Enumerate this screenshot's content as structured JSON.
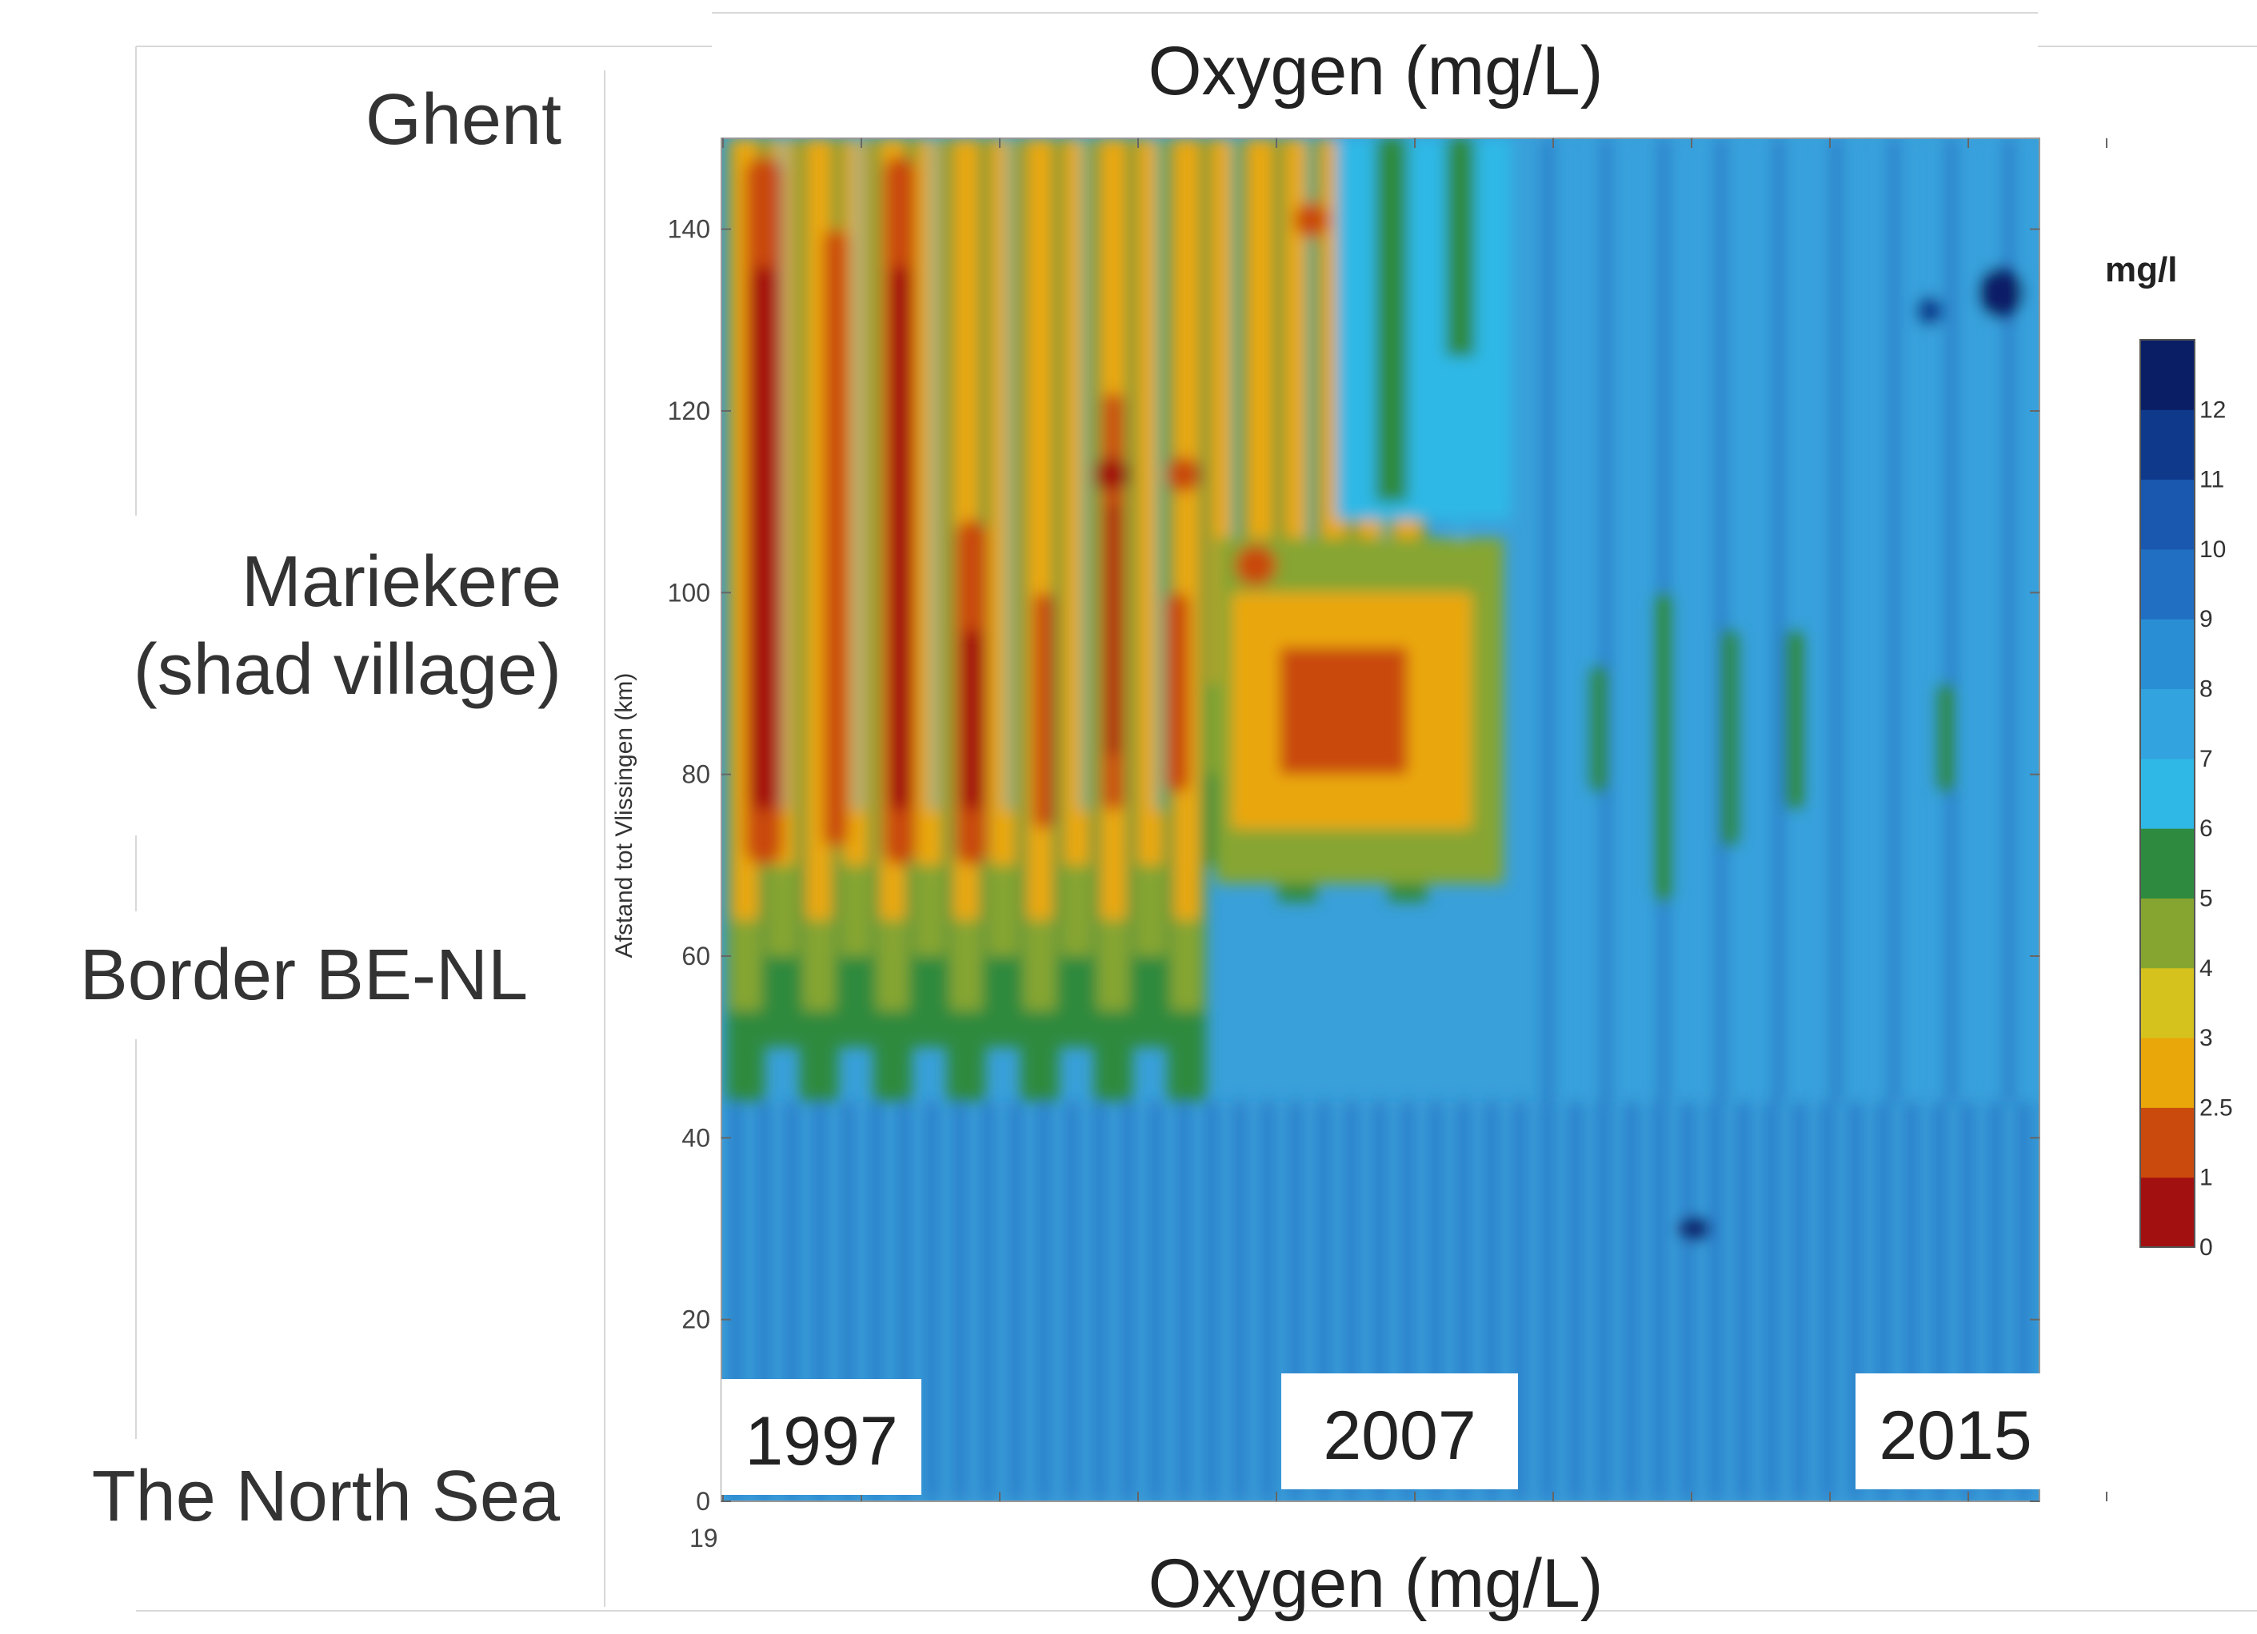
{
  "chart_data": {
    "type": "heatmap",
    "title": "Oxygen (mg/L)",
    "bottom_title": "Oxygen (mg/L)",
    "ylabel": "Afstand tot Vlissingen (km)",
    "y_ticks": [
      0,
      20,
      40,
      60,
      80,
      100,
      120,
      140
    ],
    "ylim": [
      0,
      150
    ],
    "xlim": [
      1996,
      2016
    ],
    "year_labels": [
      "1997",
      "2007",
      "2015"
    ],
    "year_positions": [
      1996.5,
      2006.2,
      2015.5
    ],
    "truncated_x_label": "19",
    "location_labels": [
      {
        "text": "Ghent",
        "km": 153
      },
      {
        "text": "Mariekere",
        "km": 102
      },
      {
        "text": "(shad village)",
        "km": 92
      },
      {
        "text": "Border BE-NL",
        "km": 59
      },
      {
        "text": "The North Sea",
        "km": 0
      }
    ],
    "colorbar": {
      "unit": "mg/l",
      "tick_labels": [
        "0",
        "1",
        "2.5",
        "3",
        "4",
        "5",
        "6",
        "7",
        "8",
        "9",
        "10",
        "11",
        "12"
      ],
      "bands": [
        "#a31010",
        "#c94a0c",
        "#eaa70a",
        "#d6c21c",
        "#86a530",
        "#2e8a3e",
        "#2fb8e6",
        "#32a3df",
        "#2a8ed4",
        "#216fc2",
        "#1a58b0",
        "#0f3a8c",
        "#0a1e66"
      ]
    },
    "legend": "right",
    "grid": false
  }
}
